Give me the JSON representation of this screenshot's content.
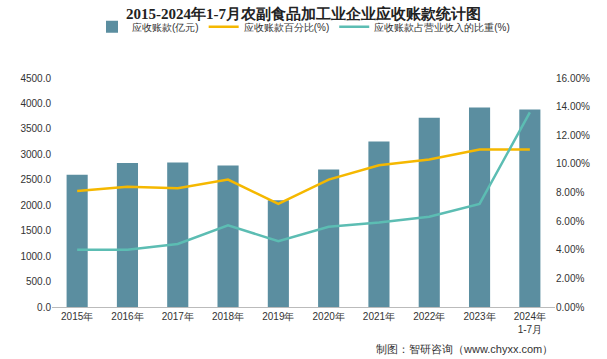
{
  "chart_data": {
    "type": "bar",
    "title": "2015-2024年1-7月农副食品加工业企业应收账款统计图",
    "categories": [
      "2015年",
      "2016年",
      "2017年",
      "2018年",
      "2019年",
      "2020年",
      "2021年",
      "2022年",
      "2023年",
      "2024年\n1-7月"
    ],
    "series": [
      {
        "name": "应收账款(亿元)",
        "type": "bar",
        "color": "#5b8ea0",
        "values": [
          2600,
          2830,
          2840,
          2780,
          2100,
          2700,
          3250,
          3720,
          3920,
          3880
        ]
      },
      {
        "name": "应收账款百分比(%)",
        "type": "line",
        "axis": "y2",
        "color": "#f5b800",
        "values": [
          8.1,
          8.4,
          8.3,
          8.9,
          7.2,
          8.9,
          9.9,
          10.3,
          11.0,
          11.0
        ]
      },
      {
        "name": "应收账款占营业收入的比重(%)",
        "type": "line",
        "axis": "y2",
        "color": "#5cbdb3",
        "values": [
          4.0,
          4.0,
          4.4,
          5.7,
          4.6,
          5.6,
          5.9,
          6.3,
          7.2,
          13.6
        ]
      }
    ],
    "ylim": [
      0,
      4500
    ],
    "yticks": [
      {
        "value": 0,
        "label": "0.0"
      },
      {
        "value": 500,
        "label": "500.0"
      },
      {
        "value": 1000,
        "label": "1000.0"
      },
      {
        "value": 1500,
        "label": "1500.0"
      },
      {
        "value": 2000,
        "label": "2000.0"
      },
      {
        "value": 2500,
        "label": "2500.0"
      },
      {
        "value": 3000,
        "label": "3000.0"
      },
      {
        "value": 3500,
        "label": "3500.0"
      },
      {
        "value": 4000,
        "label": "4000.0"
      },
      {
        "value": 4500,
        "label": "4500.0"
      }
    ],
    "y2lim": [
      0,
      16
    ],
    "y2ticks": [
      {
        "value": 0,
        "label": "0.00%"
      },
      {
        "value": 2,
        "label": "2.00%"
      },
      {
        "value": 4,
        "label": "4.00%"
      },
      {
        "value": 6,
        "label": "6.00%"
      },
      {
        "value": 8,
        "label": "8.00%"
      },
      {
        "value": 10,
        "label": "10.00%"
      },
      {
        "value": 12,
        "label": "12.00%"
      },
      {
        "value": 14,
        "label": "14.00%"
      },
      {
        "value": 16,
        "label": "16.00%"
      }
    ],
    "grid": false,
    "legend": "top",
    "annotations": [
      "制图：智研咨询（www.chyxx.com）"
    ]
  }
}
